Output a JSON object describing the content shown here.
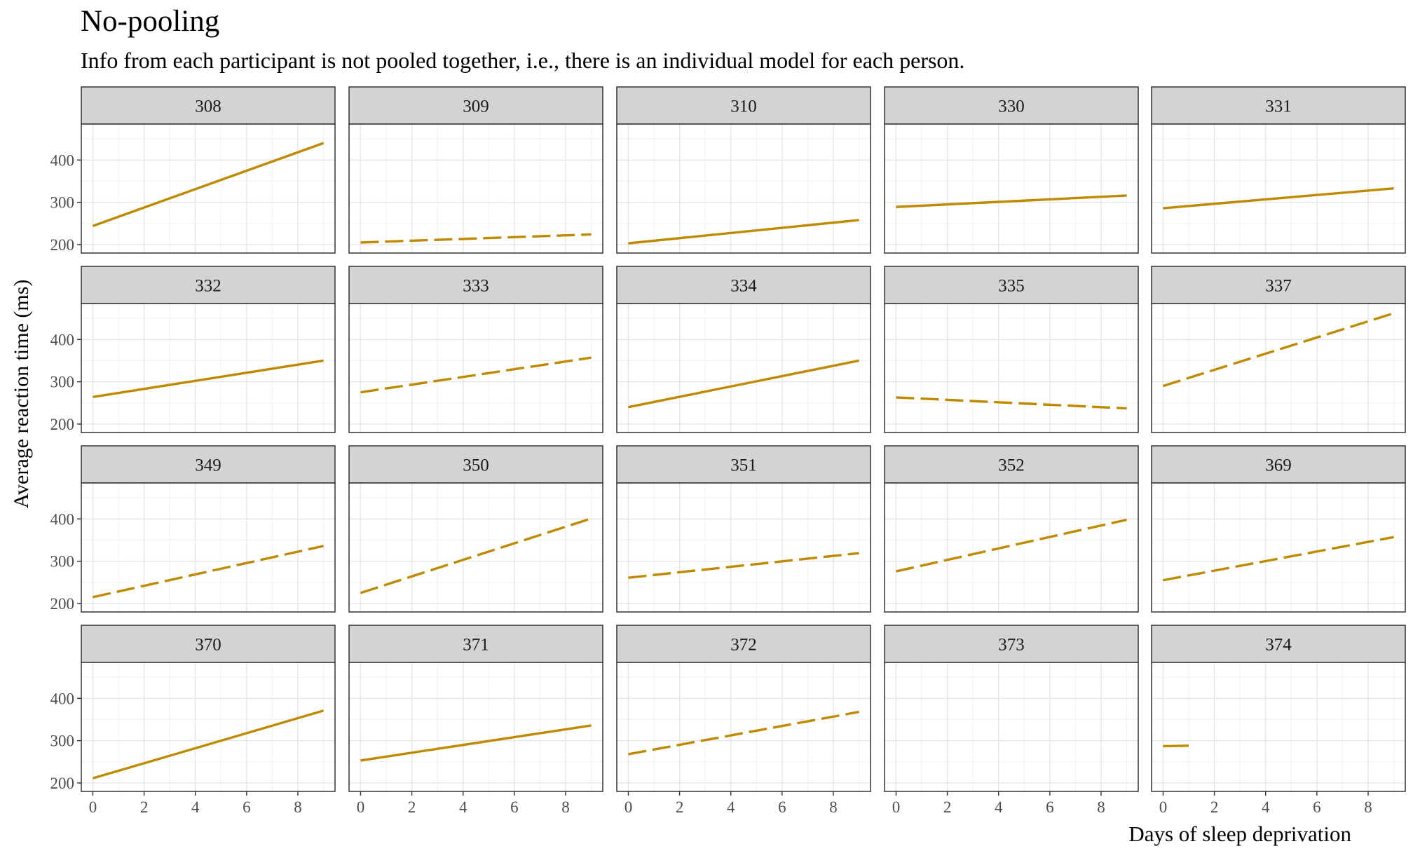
{
  "chart_data": {
    "type": "line",
    "title": "No-pooling",
    "subtitle": "Info from each participant is not pooled together, i.e., there is an individual model for each person.",
    "xlabel": "Days of sleep deprivation",
    "ylabel": "Average reaction time (ms)",
    "xlim": [
      -0.45,
      9.45
    ],
    "ylim": [
      180,
      485
    ],
    "x_ticks": [
      0,
      2,
      4,
      6,
      8
    ],
    "y_ticks": [
      200,
      300,
      400
    ],
    "grid": true,
    "line_color": "#bf8a00",
    "panels": [
      {
        "label": "308",
        "dash": "solid",
        "x": [
          0,
          9
        ],
        "y": [
          244,
          440
        ]
      },
      {
        "label": "309",
        "dash": "dashed",
        "x": [
          0,
          9
        ],
        "y": [
          205,
          224
        ]
      },
      {
        "label": "310",
        "dash": "solid",
        "x": [
          0,
          9
        ],
        "y": [
          203,
          258
        ]
      },
      {
        "label": "330",
        "dash": "solid",
        "x": [
          0,
          9
        ],
        "y": [
          289,
          316
        ]
      },
      {
        "label": "331",
        "dash": "solid",
        "x": [
          0,
          9
        ],
        "y": [
          286,
          333
        ]
      },
      {
        "label": "332",
        "dash": "solid",
        "x": [
          0,
          9
        ],
        "y": [
          264,
          350
        ]
      },
      {
        "label": "333",
        "dash": "dashed",
        "x": [
          0,
          9
        ],
        "y": [
          275,
          357
        ]
      },
      {
        "label": "334",
        "dash": "solid",
        "x": [
          0,
          9
        ],
        "y": [
          240,
          350
        ]
      },
      {
        "label": "335",
        "dash": "dashed",
        "x": [
          0,
          9
        ],
        "y": [
          263,
          237
        ]
      },
      {
        "label": "337",
        "dash": "dashed",
        "x": [
          0,
          9
        ],
        "y": [
          290,
          462
        ]
      },
      {
        "label": "349",
        "dash": "dashed",
        "x": [
          0,
          9
        ],
        "y": [
          215,
          336
        ]
      },
      {
        "label": "350",
        "dash": "dashed",
        "x": [
          0,
          9
        ],
        "y": [
          225,
          401
        ]
      },
      {
        "label": "351",
        "dash": "dashed",
        "x": [
          0,
          9
        ],
        "y": [
          261,
          319
        ]
      },
      {
        "label": "352",
        "dash": "dashed",
        "x": [
          0,
          9
        ],
        "y": [
          276,
          398
        ]
      },
      {
        "label": "369",
        "dash": "dashed",
        "x": [
          0,
          9
        ],
        "y": [
          255,
          357
        ]
      },
      {
        "label": "370",
        "dash": "solid",
        "x": [
          0,
          9
        ],
        "y": [
          211,
          371
        ]
      },
      {
        "label": "371",
        "dash": "solid",
        "x": [
          0,
          9
        ],
        "y": [
          253,
          336
        ]
      },
      {
        "label": "372",
        "dash": "dashed",
        "x": [
          0,
          9
        ],
        "y": [
          268,
          368
        ]
      },
      {
        "label": "373",
        "dash": "none",
        "x": [],
        "y": []
      },
      {
        "label": "374",
        "dash": "solid",
        "x": [
          0,
          1
        ],
        "y": [
          287,
          288
        ]
      }
    ]
  }
}
